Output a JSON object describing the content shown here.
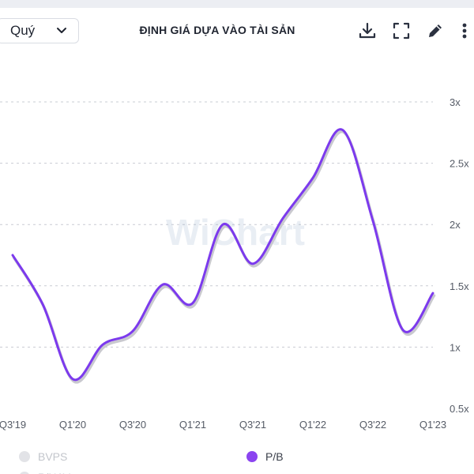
{
  "header": {
    "period_value": "Quý",
    "title": "ĐỊNH GIÁ DỰA VÀO TÀI SẢN",
    "icons": [
      "download-icon",
      "fullscreen-icon",
      "edit-icon",
      "more-icon"
    ]
  },
  "watermark": "WiChart",
  "colors": {
    "pb_line": "#7c3aed",
    "pb_shadow": "#c9c9cf",
    "grid": "#c9ccd3",
    "legend_dim": "#e2e3e7",
    "legend_pb": "#8b44f0"
  },
  "chart_data": {
    "type": "line",
    "x_ticks": [
      "Q3'19",
      "Q1'20",
      "Q3'20",
      "Q1'21",
      "Q3'21",
      "Q1'22",
      "Q3'22",
      "Q1'23"
    ],
    "y_ticks": [
      "0.5x",
      "1x",
      "1.5x",
      "2x",
      "2.5x",
      "3x"
    ],
    "ylim": [
      0.5,
      3
    ],
    "grid": "horizontal dashed",
    "legend_placement": "bottom",
    "series": [
      {
        "name": "P/B",
        "x": [
          "Q3'19",
          "Q4'19",
          "Q1'20",
          "Q2'20",
          "Q3'20",
          "Q4'20",
          "Q1'21",
          "Q2'21",
          "Q3'21",
          "Q4'21",
          "Q1'22",
          "Q2'22",
          "Q3'22",
          "Q4'22",
          "Q1'23"
        ],
        "values": [
          1.75,
          1.35,
          0.74,
          1.02,
          1.13,
          1.51,
          1.36,
          2.0,
          1.68,
          2.05,
          2.38,
          2.77,
          2.03,
          1.14,
          1.44
        ]
      }
    ],
    "legend": [
      {
        "label": "BVPS",
        "active": false
      },
      {
        "label": "P/B",
        "active": true
      },
      {
        "label": "P/NAV",
        "active": false
      }
    ]
  }
}
